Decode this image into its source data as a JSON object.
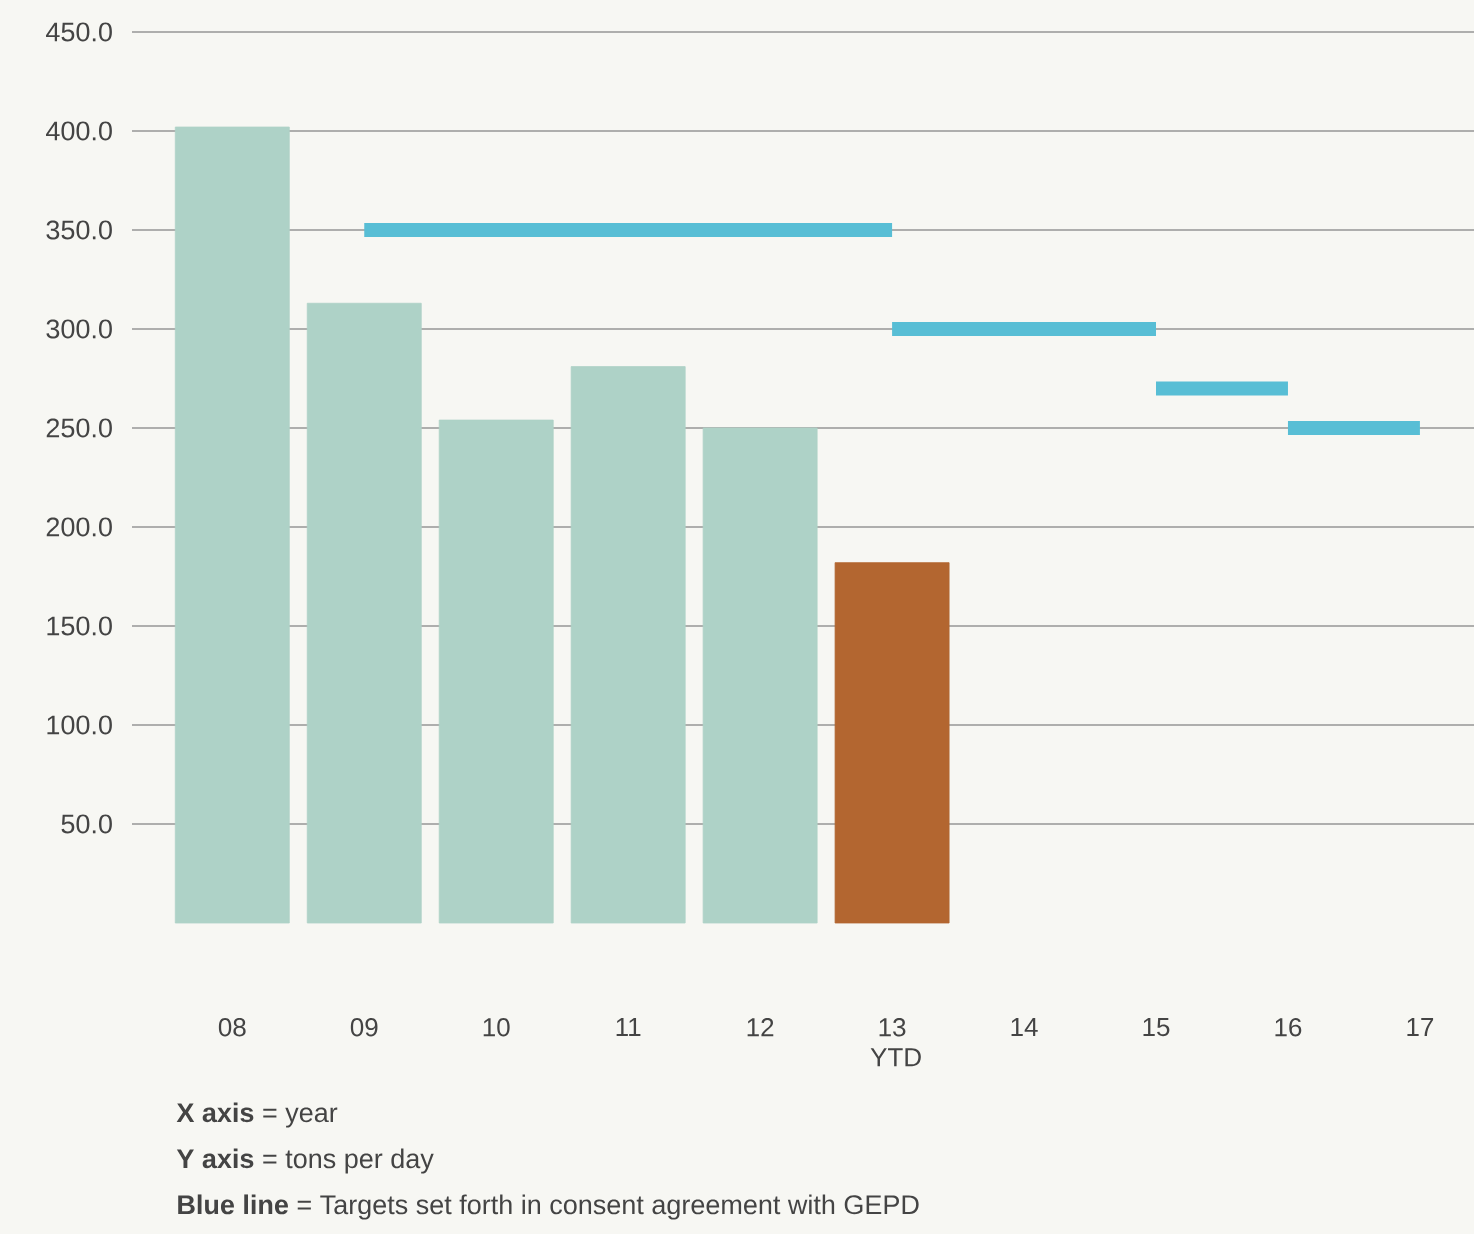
{
  "chart_data": {
    "type": "bar",
    "categories": [
      "08",
      "09",
      "10",
      "11",
      "12",
      "13 YTD",
      "14",
      "15",
      "16",
      "17"
    ],
    "series": [
      {
        "colors": [
          "#aed2c7",
          "#aed2c7",
          "#aed2c7",
          "#aed2c7",
          "#aed2c7",
          "#b36630",
          null,
          null,
          null,
          null
        ],
        "values": [
          402,
          313,
          254,
          281,
          250,
          182,
          null,
          null,
          null,
          null
        ]
      },
      {
        "type": "line",
        "color": "#58bed5",
        "values": [
          null,
          350,
          350,
          350,
          350,
          350,
          null,
          null,
          null,
          null
        ]
      },
      {
        "type": "line",
        "color": "#58bed5",
        "values": [
          null,
          null,
          null,
          null,
          null,
          300,
          300,
          300,
          null,
          null
        ]
      },
      {
        "type": "line",
        "color": "#58bed5",
        "values": [
          null,
          null,
          null,
          null,
          null,
          null,
          null,
          270,
          270,
          null
        ]
      },
      {
        "type": "line",
        "color": "#58bed5",
        "values": [
          null,
          null,
          null,
          null,
          null,
          null,
          null,
          null,
          250,
          250
        ]
      }
    ],
    "ylim": [
      0,
      450
    ],
    "yticks": [
      {
        "value": 50,
        "label": "50.0"
      },
      {
        "value": 100,
        "label": "100.0"
      },
      {
        "value": 150,
        "label": "150.0"
      },
      {
        "value": 200,
        "label": "200.0"
      },
      {
        "value": 250,
        "label": "250.0"
      },
      {
        "value": 300,
        "label": "300.0"
      },
      {
        "value": 350,
        "label": "350.0"
      },
      {
        "value": 400,
        "label": "400.0"
      },
      {
        "value": 450,
        "label": "450.0"
      }
    ],
    "grid": "y",
    "annotations": [
      "**X axis** = year",
      "**Y axis** = tons per day",
      "**Blue line** = Targets set forth in consent agreement with GEPD"
    ]
  }
}
